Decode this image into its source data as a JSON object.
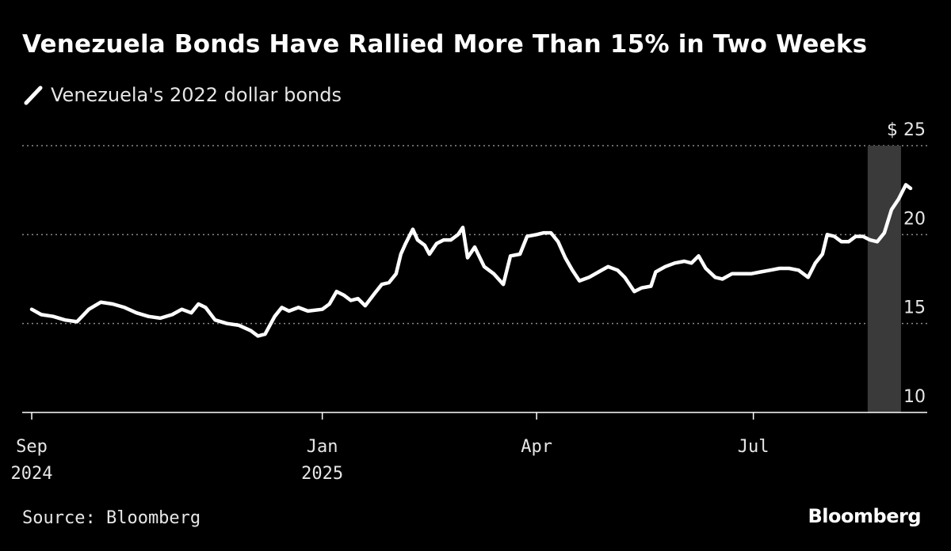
{
  "chart_data": {
    "type": "line",
    "title": "Venezuela Bonds Have Rallied More Than 15% in Two Weeks",
    "legend": [
      {
        "name": "Venezuela's 2022 dollar bonds",
        "color": "#ffffff"
      }
    ],
    "source": "Source: Bloomberg",
    "brand": "Bloomberg",
    "ylabel_unit": "$",
    "ylim": [
      10,
      25
    ],
    "yticks": [
      {
        "value": 25,
        "label": "25"
      },
      {
        "value": 20,
        "label": "20"
      },
      {
        "value": 15,
        "label": "15"
      },
      {
        "value": 10,
        "label": "10"
      }
    ],
    "xlim": [
      "2024-08-28",
      "2025-09-12"
    ],
    "xticks": [
      {
        "date": "2024-09-01",
        "month": "Sep",
        "year": "2024"
      },
      {
        "date": "2025-01-01",
        "month": "Jan",
        "year": "2025"
      },
      {
        "date": "2025-04-01",
        "month": "Apr",
        "year": ""
      },
      {
        "date": "2025-07-01",
        "month": "Jul",
        "year": ""
      }
    ],
    "highlight": {
      "start": "2025-08-18",
      "end": "2025-09-01",
      "color": "#3a3a3a"
    },
    "gridlines": "dotted",
    "series": [
      {
        "name": "Venezuela's 2022 dollar bonds",
        "points": [
          [
            "2024-09-01",
            15.8
          ],
          [
            "2024-09-05",
            15.5
          ],
          [
            "2024-09-10",
            15.4
          ],
          [
            "2024-09-15",
            15.2
          ],
          [
            "2024-09-20",
            15.1
          ],
          [
            "2024-09-25",
            15.8
          ],
          [
            "2024-09-30",
            16.2
          ],
          [
            "2024-10-05",
            16.1
          ],
          [
            "2024-10-10",
            15.9
          ],
          [
            "2024-10-15",
            15.6
          ],
          [
            "2024-10-20",
            15.4
          ],
          [
            "2024-10-25",
            15.3
          ],
          [
            "2024-10-30",
            15.5
          ],
          [
            "2024-11-03",
            15.8
          ],
          [
            "2024-11-07",
            15.6
          ],
          [
            "2024-11-10",
            16.1
          ],
          [
            "2024-11-13",
            15.9
          ],
          [
            "2024-11-17",
            15.2
          ],
          [
            "2024-11-22",
            15.0
          ],
          [
            "2024-11-27",
            14.9
          ],
          [
            "2024-12-02",
            14.6
          ],
          [
            "2024-12-05",
            14.3
          ],
          [
            "2024-12-08",
            14.4
          ],
          [
            "2024-12-12",
            15.4
          ],
          [
            "2024-12-15",
            15.9
          ],
          [
            "2024-12-18",
            15.7
          ],
          [
            "2024-12-22",
            15.9
          ],
          [
            "2024-12-26",
            15.7
          ],
          [
            "2025-01-01",
            15.8
          ],
          [
            "2025-01-04",
            16.1
          ],
          [
            "2025-01-07",
            16.8
          ],
          [
            "2025-01-10",
            16.6
          ],
          [
            "2025-01-13",
            16.3
          ],
          [
            "2025-01-16",
            16.4
          ],
          [
            "2025-01-19",
            16.0
          ],
          [
            "2025-01-23",
            16.7
          ],
          [
            "2025-01-26",
            17.2
          ],
          [
            "2025-01-29",
            17.3
          ],
          [
            "2025-02-01",
            17.8
          ],
          [
            "2025-02-03",
            18.9
          ],
          [
            "2025-02-05",
            19.5
          ],
          [
            "2025-02-08",
            20.3
          ],
          [
            "2025-02-10",
            19.7
          ],
          [
            "2025-02-13",
            19.4
          ],
          [
            "2025-02-15",
            18.9
          ],
          [
            "2025-02-18",
            19.5
          ],
          [
            "2025-02-21",
            19.7
          ],
          [
            "2025-02-24",
            19.7
          ],
          [
            "2025-02-27",
            20.0
          ],
          [
            "2025-03-01",
            20.4
          ],
          [
            "2025-03-03",
            18.7
          ],
          [
            "2025-03-06",
            19.3
          ],
          [
            "2025-03-10",
            18.2
          ],
          [
            "2025-03-14",
            17.8
          ],
          [
            "2025-03-18",
            17.2
          ],
          [
            "2025-03-21",
            18.8
          ],
          [
            "2025-03-25",
            18.9
          ],
          [
            "2025-03-28",
            19.9
          ],
          [
            "2025-04-01",
            20.0
          ],
          [
            "2025-04-04",
            20.1
          ],
          [
            "2025-04-07",
            20.1
          ],
          [
            "2025-04-10",
            19.6
          ],
          [
            "2025-04-13",
            18.7
          ],
          [
            "2025-04-16",
            18.0
          ],
          [
            "2025-04-19",
            17.4
          ],
          [
            "2025-04-23",
            17.6
          ],
          [
            "2025-04-27",
            17.9
          ],
          [
            "2025-05-01",
            18.2
          ],
          [
            "2025-05-05",
            18.0
          ],
          [
            "2025-05-08",
            17.6
          ],
          [
            "2025-05-12",
            16.8
          ],
          [
            "2025-05-15",
            17.0
          ],
          [
            "2025-05-19",
            17.1
          ],
          [
            "2025-05-21",
            17.9
          ],
          [
            "2025-05-25",
            18.2
          ],
          [
            "2025-05-29",
            18.4
          ],
          [
            "2025-06-02",
            18.5
          ],
          [
            "2025-06-05",
            18.4
          ],
          [
            "2025-06-08",
            18.8
          ],
          [
            "2025-06-11",
            18.1
          ],
          [
            "2025-06-15",
            17.6
          ],
          [
            "2025-06-18",
            17.5
          ],
          [
            "2025-06-22",
            17.8
          ],
          [
            "2025-06-26",
            17.8
          ],
          [
            "2025-06-30",
            17.8
          ],
          [
            "2025-07-04",
            17.9
          ],
          [
            "2025-07-08",
            18.0
          ],
          [
            "2025-07-12",
            18.1
          ],
          [
            "2025-07-16",
            18.1
          ],
          [
            "2025-07-20",
            18.0
          ],
          [
            "2025-07-24",
            17.6
          ],
          [
            "2025-07-27",
            18.4
          ],
          [
            "2025-07-30",
            18.9
          ],
          [
            "2025-08-01",
            20.0
          ],
          [
            "2025-08-04",
            19.9
          ],
          [
            "2025-08-07",
            19.6
          ],
          [
            "2025-08-10",
            19.6
          ],
          [
            "2025-08-13",
            19.9
          ],
          [
            "2025-08-16",
            19.9
          ],
          [
            "2025-08-19",
            19.7
          ],
          [
            "2025-08-22",
            19.6
          ],
          [
            "2025-08-25",
            20.1
          ],
          [
            "2025-08-28",
            21.4
          ],
          [
            "2025-08-31",
            22.0
          ],
          [
            "2025-09-03",
            22.8
          ],
          [
            "2025-09-05",
            22.6
          ]
        ]
      }
    ]
  }
}
